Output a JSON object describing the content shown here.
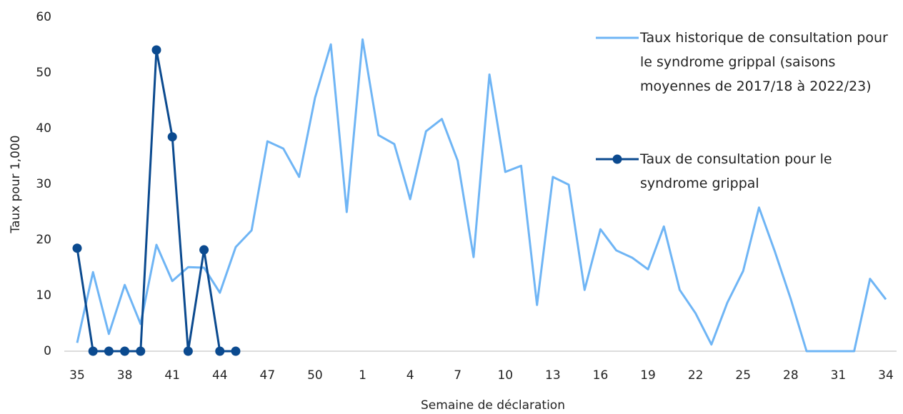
{
  "chart_data": {
    "type": "line",
    "x_label": "Semaine de déclaration",
    "y_label": "Taux pour 1,000",
    "categories": [
      "35",
      null,
      null,
      "38",
      null,
      null,
      "41",
      null,
      null,
      "44",
      null,
      null,
      "47",
      null,
      null,
      "50",
      null,
      null,
      "1",
      null,
      null,
      "4",
      null,
      null,
      "7",
      null,
      null,
      "10",
      null,
      null,
      "13",
      null,
      null,
      "16",
      null,
      null,
      "19",
      null,
      null,
      "22",
      null,
      null,
      "25",
      null,
      null,
      "28",
      null,
      null,
      "31",
      null,
      null,
      "34"
    ],
    "series": [
      {
        "name": "Taux historique de consultation pour le syndrome grippal (saisons moyennes de 2017/18 à 2022/23)",
        "color": "#6fb5f5",
        "markers": false,
        "values": [
          1.5,
          14.2,
          3.1,
          11.9,
          4.9,
          19.1,
          12.6,
          15.1,
          15.0,
          10.5,
          18.7,
          21.7,
          37.7,
          36.4,
          31.3,
          45.5,
          55.1,
          25.0,
          56.0,
          38.8,
          37.2,
          27.3,
          39.5,
          41.7,
          34.2,
          16.9,
          49.7,
          32.2,
          33.3,
          8.3,
          31.3,
          29.9,
          11.0,
          21.9,
          18.1,
          16.8,
          14.7,
          22.4,
          11.0,
          6.8,
          1.2,
          8.7,
          14.4,
          25.8,
          17.9,
          9.4,
          0,
          0,
          0,
          0,
          13.0,
          9.3
        ]
      },
      {
        "name": "Taux de consultation pour le syndrome grippal",
        "color": "#0b4a8f",
        "markers": true,
        "values": [
          18.5,
          0,
          0,
          0,
          0,
          54.1,
          38.5,
          0,
          18.2,
          0,
          0,
          null,
          null,
          null,
          null,
          null,
          null,
          null,
          null,
          null,
          null,
          null,
          null,
          null,
          null,
          null,
          null,
          null,
          null,
          null,
          null,
          null,
          null,
          null,
          null,
          null,
          null,
          null,
          null,
          null,
          null,
          null,
          null,
          null,
          null,
          null,
          null,
          null,
          null,
          null,
          null,
          null
        ]
      }
    ],
    "ylim": [
      0,
      60
    ],
    "yticks": [
      0,
      10,
      20,
      30,
      40,
      50,
      60
    ],
    "grid": false,
    "legend": "right"
  }
}
